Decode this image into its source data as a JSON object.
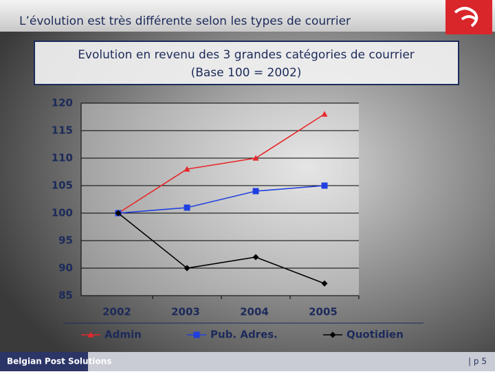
{
  "header": {
    "title": "L’évolution est très différente selon les types de courrier"
  },
  "chart_data": {
    "type": "line",
    "title": "Evolution en revenu des 3 grandes catégories de courrier",
    "subtitle": "(Base 100 = 2002)",
    "categories": [
      "2002",
      "2003",
      "2004",
      "2005"
    ],
    "series": [
      {
        "name": "Admin",
        "color": "#e8262a",
        "marker": "triangle",
        "values": [
          100,
          108,
          110,
          118
        ]
      },
      {
        "name": "Pub. Adres.",
        "color": "#1f3fe0",
        "marker": "square",
        "values": [
          100,
          101,
          104,
          105
        ]
      },
      {
        "name": "Quotidien",
        "color": "#000000",
        "marker": "diamond",
        "values": [
          100,
          90,
          92,
          87.2
        ]
      }
    ],
    "ylim": [
      85,
      120
    ],
    "yticks": [
      85,
      90,
      95,
      100,
      105,
      110,
      115,
      120
    ],
    "grid": true,
    "legend": "bottom"
  },
  "footer": {
    "brand": "Belgian Post Solutions",
    "page": "| p 5"
  }
}
